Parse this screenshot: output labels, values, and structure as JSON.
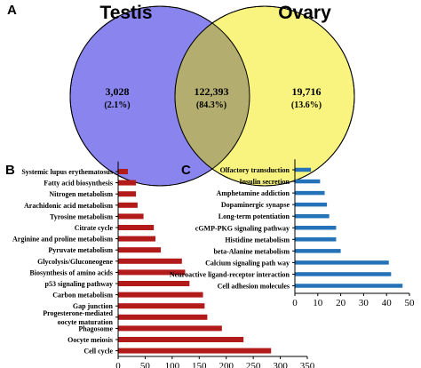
{
  "figure": {
    "colors": {
      "testis_fill": "#8a85ee",
      "ovary_fill": "#f8f47f",
      "overlap_fill": "#b3ae6f",
      "bar_red": "#b31a1a",
      "bar_blue": "#2473b8"
    }
  },
  "chart_data": [
    {
      "panel": "A",
      "type": "venn",
      "sets": [
        "Testis",
        "Ovary"
      ],
      "regions": [
        {
          "set": "Testis only",
          "count": "3,028",
          "percent": "(2.1%)"
        },
        {
          "set": "Both",
          "count": "122,393",
          "percent": "(84.3%)"
        },
        {
          "set": "Ovary only",
          "count": "19,716",
          "percent": "(13.6%)"
        }
      ]
    },
    {
      "panel": "B",
      "type": "bar",
      "orientation": "horizontal",
      "categories": [
        "Systemic lupus erythematosus",
        "Fatty acid biosynthesis",
        "Nitrogen metabolism",
        "Arachidonic acid metabolism",
        "Tyrosine metabolism",
        "Citrate cycle",
        "Arginine and proline metabolism",
        "Pyruvate metabolism",
        "Glycolysis/Gluconeogene",
        "Biosynthesis of amino acids",
        "p53 signaling pathway",
        "Carbon metabolism",
        "Gap junction",
        "Progesterone-mediated oocyte maturation",
        "Phagosome",
        "Oocyte meiosis",
        "Cell cycle"
      ],
      "category_lines": [
        [
          "Systemic lupus erythematosus"
        ],
        [
          "Fatty acid biosynthesis"
        ],
        [
          "Nitrogen metabolism"
        ],
        [
          "Arachidonic acid metabolism"
        ],
        [
          "Tyrosine metabolism"
        ],
        [
          "Citrate cycle"
        ],
        [
          "Arginine and proline metabolism"
        ],
        [
          "Pyruvate metabolism"
        ],
        [
          "Glycolysis/Gluconeogene"
        ],
        [
          "Biosynthesis of amino acids"
        ],
        [
          "p53 signaling pathway"
        ],
        [
          "Carbon metabolism"
        ],
        [
          "Gap junction"
        ],
        [
          "Progesterone-mediated",
          "oocyte maturation"
        ],
        [
          "Phagosome"
        ],
        [
          "Oocyte meiosis"
        ],
        [
          "Cell cycle"
        ]
      ],
      "values": [
        18,
        33,
        33,
        36,
        47,
        66,
        69,
        79,
        118,
        124,
        132,
        157,
        160,
        165,
        192,
        232,
        283
      ],
      "xlim": [
        0,
        350
      ],
      "xticks": [
        "0",
        "50",
        "100",
        "150",
        "200",
        "250",
        "300",
        "350"
      ]
    },
    {
      "panel": "C",
      "type": "bar",
      "orientation": "horizontal",
      "categories": [
        "Olfactory transduction",
        "Insulin secretion",
        "Amphetamine addiction",
        "Dopaminergic synapse",
        "Long-term potentiation",
        "cGMP-PKG signaling pathway",
        "Histidine metabolism",
        "beta-Alanine metabolism",
        "Calcium signaling path way",
        "Neuroactive ligand-receptor interaction",
        "Cell adhesion molecules"
      ],
      "values": [
        7,
        11,
        13,
        14,
        15,
        18,
        18,
        20,
        41,
        42,
        47
      ],
      "xlim": [
        0,
        50
      ],
      "xticks": [
        "0",
        "10",
        "20",
        "30",
        "40",
        "50"
      ]
    }
  ]
}
